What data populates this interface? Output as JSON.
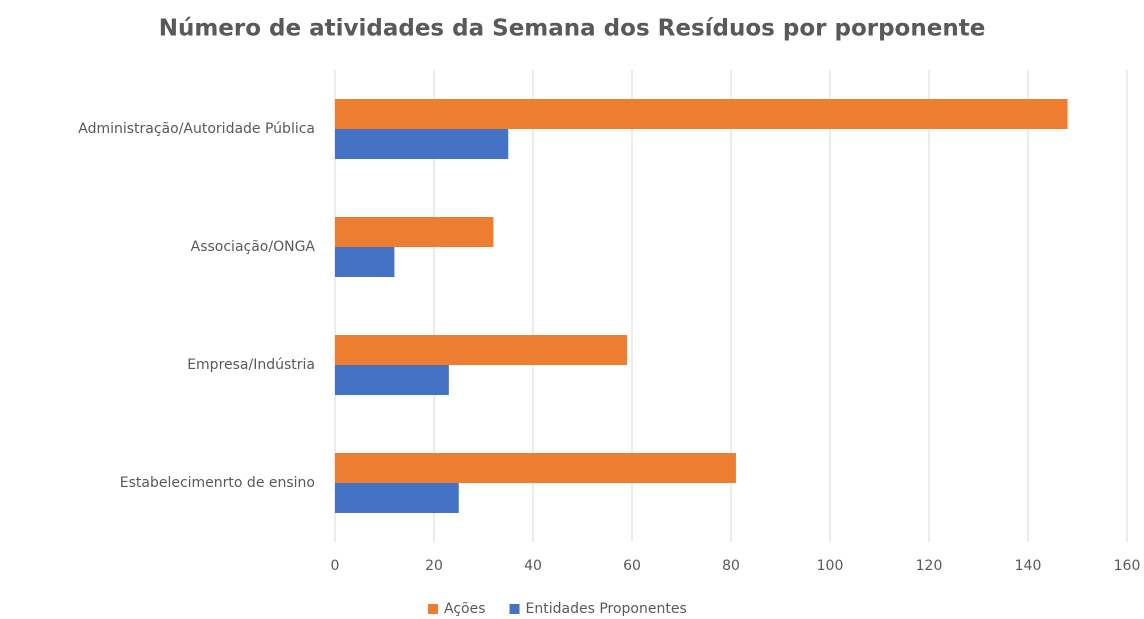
{
  "chart_data": {
    "type": "bar",
    "orientation": "horizontal",
    "title": "Número de atividades da Semana dos Resíduos por porponente",
    "categories": [
      "Administração/Autoridade Pública",
      "Associação/ONGA",
      "Empresa/Indústria",
      "Estabelecimenrto de ensino"
    ],
    "series": [
      {
        "name": "Ações",
        "color": "#ed7d31",
        "values": [
          148,
          32,
          59,
          81
        ]
      },
      {
        "name": "Entidades Proponentes",
        "color": "#4472c4",
        "values": [
          35,
          12,
          23,
          25
        ]
      }
    ],
    "xlim": [
      0,
      160
    ],
    "xticks": [
      0,
      20,
      40,
      60,
      80,
      100,
      120,
      140,
      160
    ],
    "grid": true,
    "legend": "bottom"
  }
}
